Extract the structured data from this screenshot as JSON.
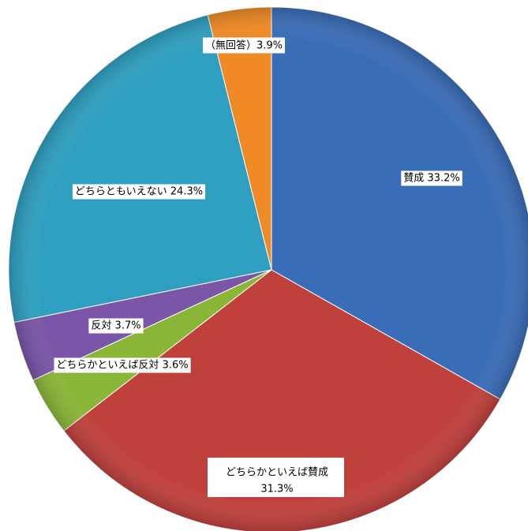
{
  "chart_data": {
    "type": "pie",
    "start_angle_deg": 0,
    "direction": "clockwise",
    "slices": [
      {
        "label": "賛成",
        "value": 33.2,
        "display": "賛成 33.2%",
        "color": "#3a6db8"
      },
      {
        "label": "どちらかといえば賛成",
        "value": 31.3,
        "display": "どちらかといえば賛成",
        "display2": "31.3%",
        "color": "#c0403c"
      },
      {
        "label": "どちらかといえば反対",
        "value": 3.6,
        "display": "どちらかといえば反対 3.6%",
        "color": "#8ab637"
      },
      {
        "label": "反対",
        "value": 3.7,
        "display": "反対 3.7%",
        "color": "#7a55a8"
      },
      {
        "label": "どちらともいえない",
        "value": 24.3,
        "display": "どちらともいえない 24.3%",
        "color": "#2e9fc0"
      },
      {
        "label": "（無回答）",
        "value": 3.9,
        "display": "（無回答）3.9%",
        "color": "#f08a24"
      }
    ]
  }
}
